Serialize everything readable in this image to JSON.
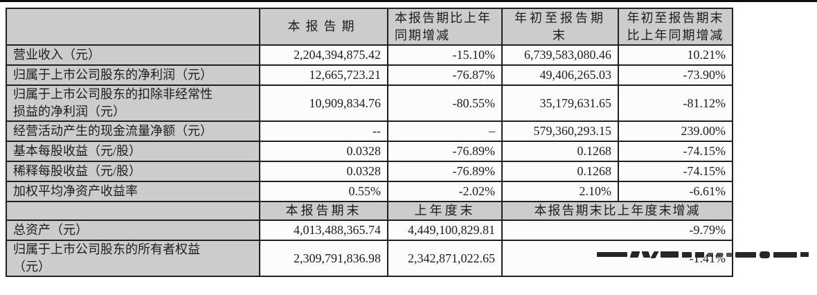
{
  "table": {
    "header_row1": {
      "col_current": "本报告期",
      "col_yoy": "本报告期比上年\n同期增减",
      "col_ytd": "年初至报告期末",
      "col_ytd_yoy": "年初至报告期末\n比上年同期增减"
    },
    "rows_period": [
      {
        "label": "营业收入（元）",
        "current": "2,204,394,875.42",
        "yoy": "-15.10%",
        "ytd": "6,739,583,080.46",
        "ytd_yoy": "10.21%"
      },
      {
        "label": "归属于上市公司股东的净利润（元）",
        "current": "12,665,723.21",
        "yoy": "-76.87%",
        "ytd": "49,406,265.03",
        "ytd_yoy": "-73.90%"
      },
      {
        "label": "归属于上市公司股东的扣除非经常性\n损益的净利润（元）",
        "current": "10,909,834.76",
        "yoy": "-80.55%",
        "ytd": "35,179,631.65",
        "ytd_yoy": "-81.12%"
      },
      {
        "label": "经营活动产生的现金流量净额（元）",
        "current": "--",
        "yoy": "–",
        "ytd": "579,360,293.15",
        "ytd_yoy": "239.00%"
      },
      {
        "label": "基本每股收益（元/股）",
        "current": "0.0328",
        "yoy": "-76.89%",
        "ytd": "0.1268",
        "ytd_yoy": "-74.15%"
      },
      {
        "label": "稀释每股收益（元/股）",
        "current": "0.0328",
        "yoy": "-76.89%",
        "ytd": "0.1268",
        "ytd_yoy": "-74.15%"
      },
      {
        "label": "加权平均净资产收益率",
        "current": "0.55%",
        "yoy": "-2.02%",
        "ytd": "2.10%",
        "ytd_yoy": "-6.61%"
      }
    ],
    "header_row2": {
      "col_end": "本报告期末",
      "col_prior": "上年度末",
      "col_change": "本报告期末比上年度末增减"
    },
    "rows_position": [
      {
        "label": "总资产（元）",
        "current": "4,013,488,365.74",
        "prior": "4,449,100,829.81",
        "change": "-9.79%"
      },
      {
        "label": "归属于上市公司股东的所有者权益\n（元）",
        "current": "2,309,791,836.98",
        "prior": "2,342,871,022.65",
        "change": "-1.41%"
      }
    ],
    "colors": {
      "header_bg": "#cccccc",
      "cell_bg": "#fcfcfc",
      "border": "#1f1f1f",
      "top_rule": "#0d0d0d"
    }
  }
}
